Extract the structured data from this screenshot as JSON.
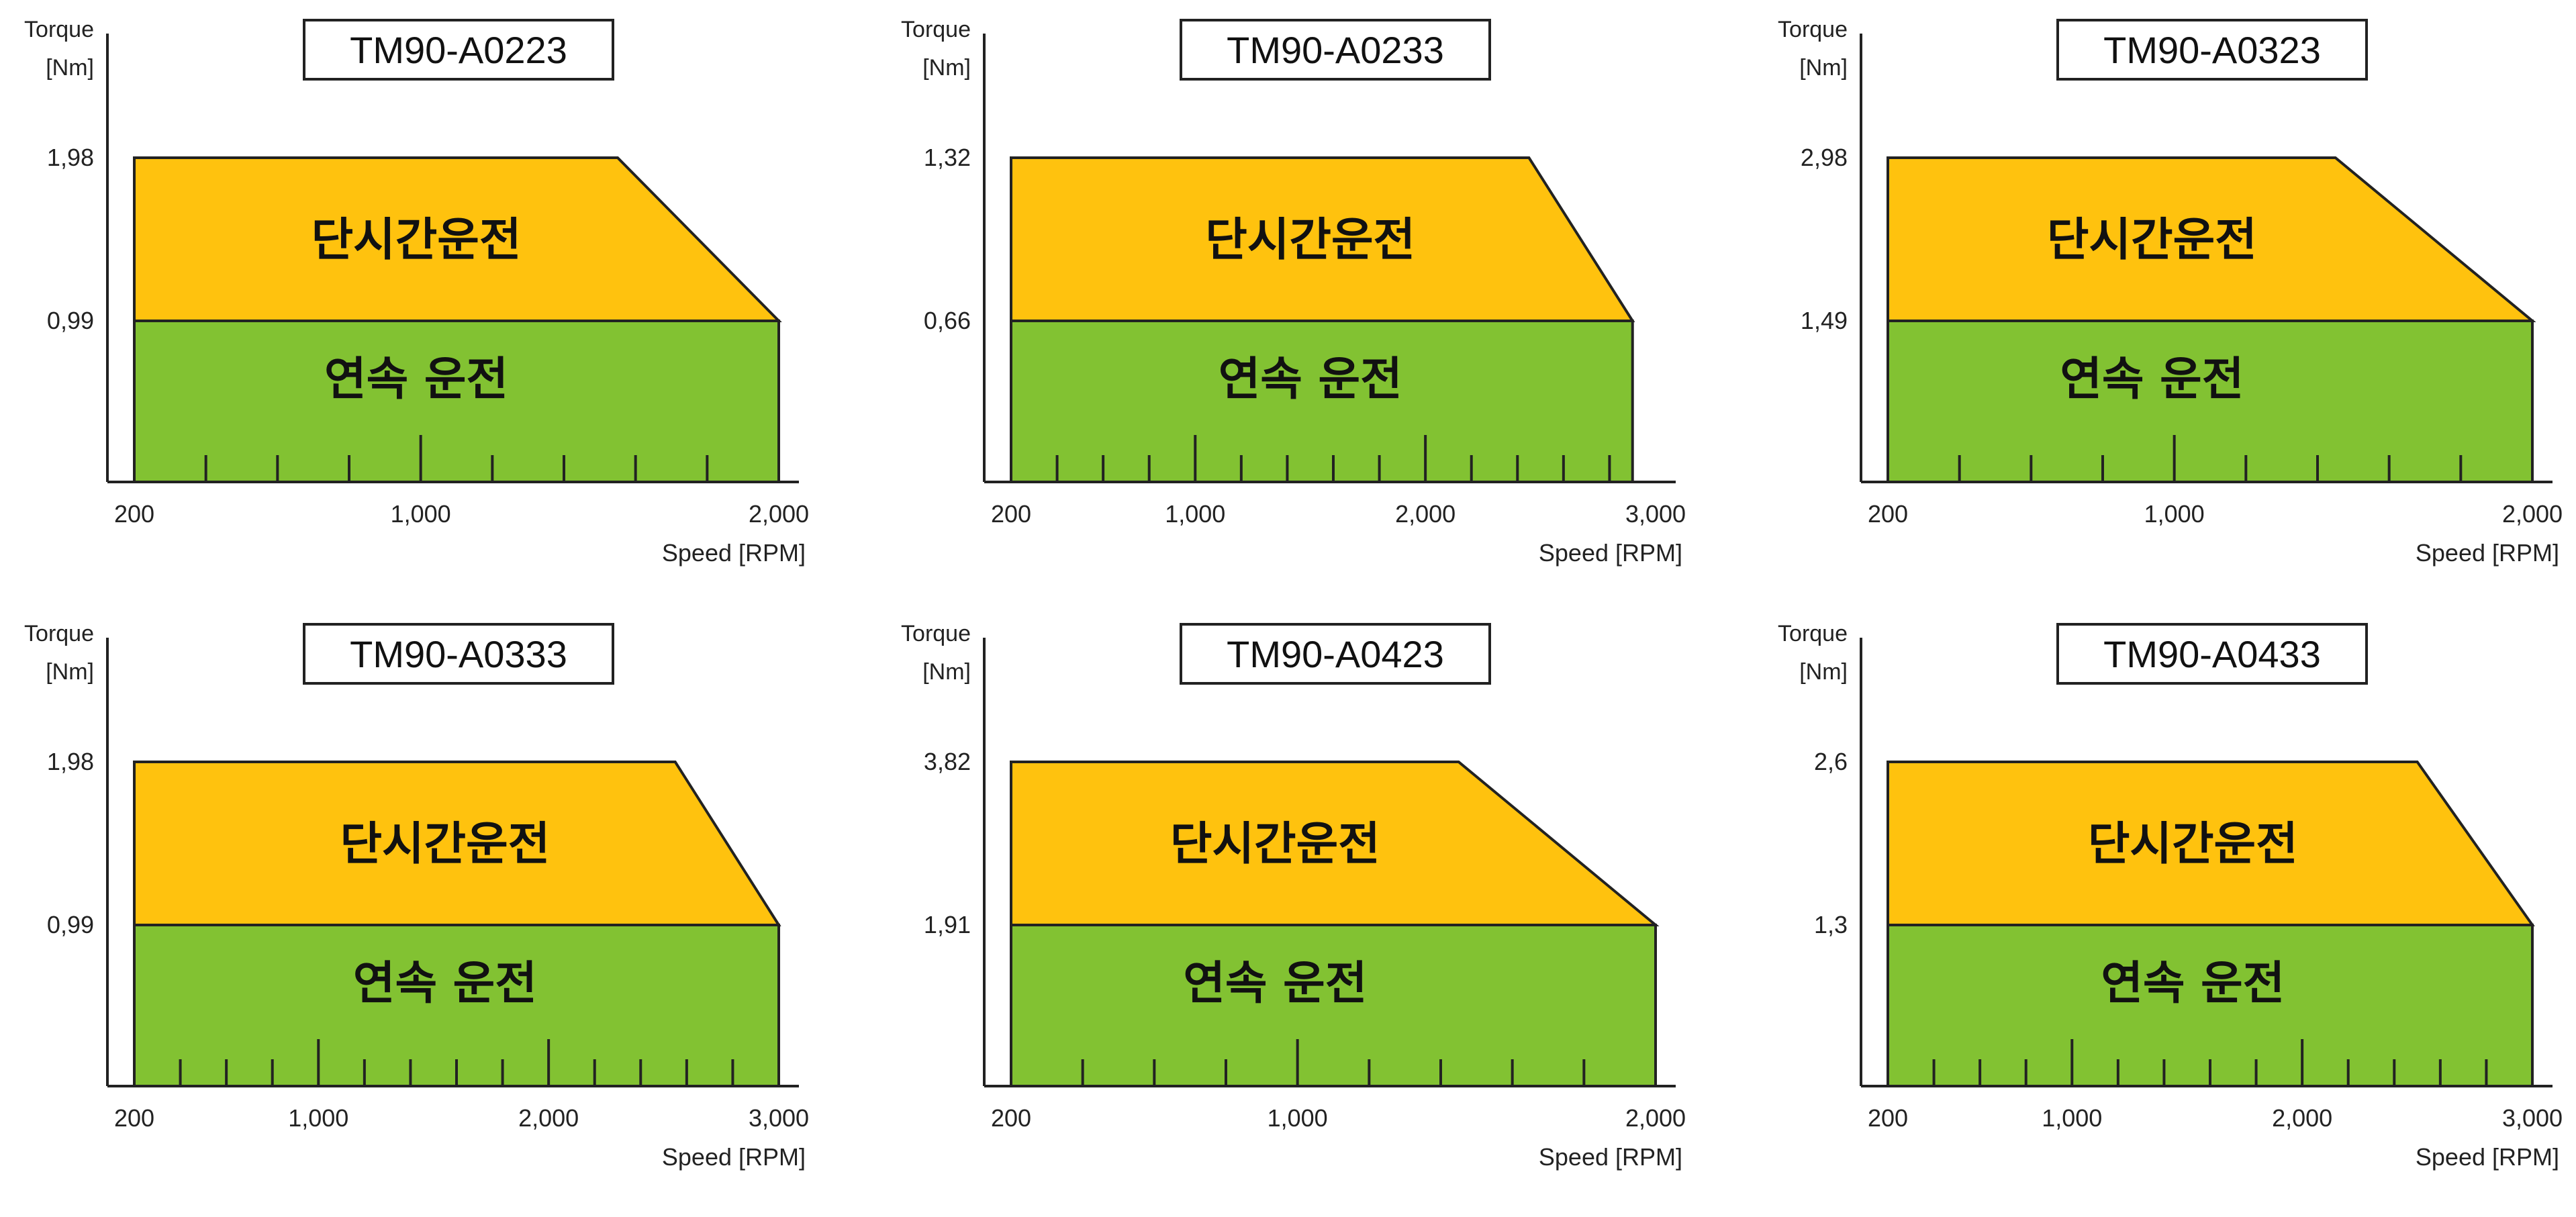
{
  "legend_labels": {
    "short_time": "단시간운전",
    "continuous": "연속 운전"
  },
  "axis_text": {
    "y_name": "Torque",
    "y_unit": "[Nm]",
    "x_name": "Speed [RPM]"
  },
  "colors": {
    "short_time_region": "#FFC20E",
    "continuous_region": "#82C232",
    "outline": "#222222"
  },
  "chart_data": [
    {
      "type": "area",
      "title": "TM90-A0223",
      "xlabel": "Speed [RPM]",
      "ylabel": "Torque [Nm]",
      "x_ticks": [
        "200",
        "1,000",
        "2,000"
      ],
      "xlim": [
        200,
        2000
      ],
      "y_ticks": [
        "1,98",
        "0,99"
      ],
      "series": [
        {
          "name": "단시간운전",
          "x": [
            200,
            1550,
            2000
          ],
          "y": [
            1.98,
            1.98,
            0.99
          ]
        },
        {
          "name": "연속 운전",
          "x": [
            200,
            2000
          ],
          "y": [
            0.99,
            0.99
          ]
        }
      ]
    },
    {
      "type": "area",
      "title": "TM90-A0233",
      "xlabel": "Speed [RPM]",
      "ylabel": "Torque [Nm]",
      "x_ticks": [
        "200",
        "1,000",
        "2,000",
        "3,000"
      ],
      "xlim": [
        200,
        3000
      ],
      "y_ticks": [
        "1,32",
        "0,66"
      ],
      "series": [
        {
          "name": "단시간운전",
          "x": [
            200,
            2450,
            2900
          ],
          "y": [
            1.32,
            1.32,
            0.66
          ]
        },
        {
          "name": "연속 운전",
          "x": [
            200,
            2900
          ],
          "y": [
            0.66,
            0.66
          ]
        }
      ]
    },
    {
      "type": "area",
      "title": "TM90-A0323",
      "xlabel": "Speed [RPM]",
      "ylabel": "Torque [Nm]",
      "x_ticks": [
        "200",
        "1,000",
        "2,000"
      ],
      "xlim": [
        200,
        2000
      ],
      "y_ticks": [
        "2,98",
        "1,49"
      ],
      "series": [
        {
          "name": "단시간운전",
          "x": [
            200,
            1450,
            2000
          ],
          "y": [
            2.98,
            2.98,
            1.49
          ]
        },
        {
          "name": "연속 운전",
          "x": [
            200,
            2000
          ],
          "y": [
            1.49,
            1.49
          ]
        }
      ]
    },
    {
      "type": "area",
      "title": "TM90-A0333",
      "xlabel": "Speed [RPM]",
      "ylabel": "Torque [Nm]",
      "x_ticks": [
        "200",
        "1,000",
        "2,000",
        "3,000"
      ],
      "xlim": [
        200,
        3000
      ],
      "y_ticks": [
        "1,98",
        "0,99"
      ],
      "series": [
        {
          "name": "단시간운전",
          "x": [
            200,
            2550,
            3000
          ],
          "y": [
            1.98,
            1.98,
            0.99
          ]
        },
        {
          "name": "연속 운전",
          "x": [
            200,
            3000
          ],
          "y": [
            0.99,
            0.99
          ]
        }
      ]
    },
    {
      "type": "area",
      "title": "TM90-A0423",
      "xlabel": "Speed [RPM]",
      "ylabel": "Torque [Nm]",
      "x_ticks": [
        "200",
        "1,000",
        "2,000"
      ],
      "xlim": [
        200,
        2000
      ],
      "y_ticks": [
        "3,82",
        "1,91"
      ],
      "series": [
        {
          "name": "단시간운전",
          "x": [
            200,
            1450,
            2000
          ],
          "y": [
            3.82,
            3.82,
            1.91
          ]
        },
        {
          "name": "연속 운전",
          "x": [
            200,
            2000
          ],
          "y": [
            1.91,
            1.91
          ]
        }
      ]
    },
    {
      "type": "area",
      "title": "TM90-A0433",
      "xlabel": "Speed [RPM]",
      "ylabel": "Torque [Nm]",
      "x_ticks": [
        "200",
        "1,000",
        "2,000",
        "3,000"
      ],
      "xlim": [
        200,
        3000
      ],
      "y_ticks": [
        "2,6",
        "1,3"
      ],
      "series": [
        {
          "name": "단시간운전",
          "x": [
            200,
            2500,
            3000
          ],
          "y": [
            2.6,
            2.6,
            1.3
          ]
        },
        {
          "name": "연속 운전",
          "x": [
            200,
            3000
          ],
          "y": [
            1.3,
            1.3
          ]
        }
      ]
    }
  ]
}
